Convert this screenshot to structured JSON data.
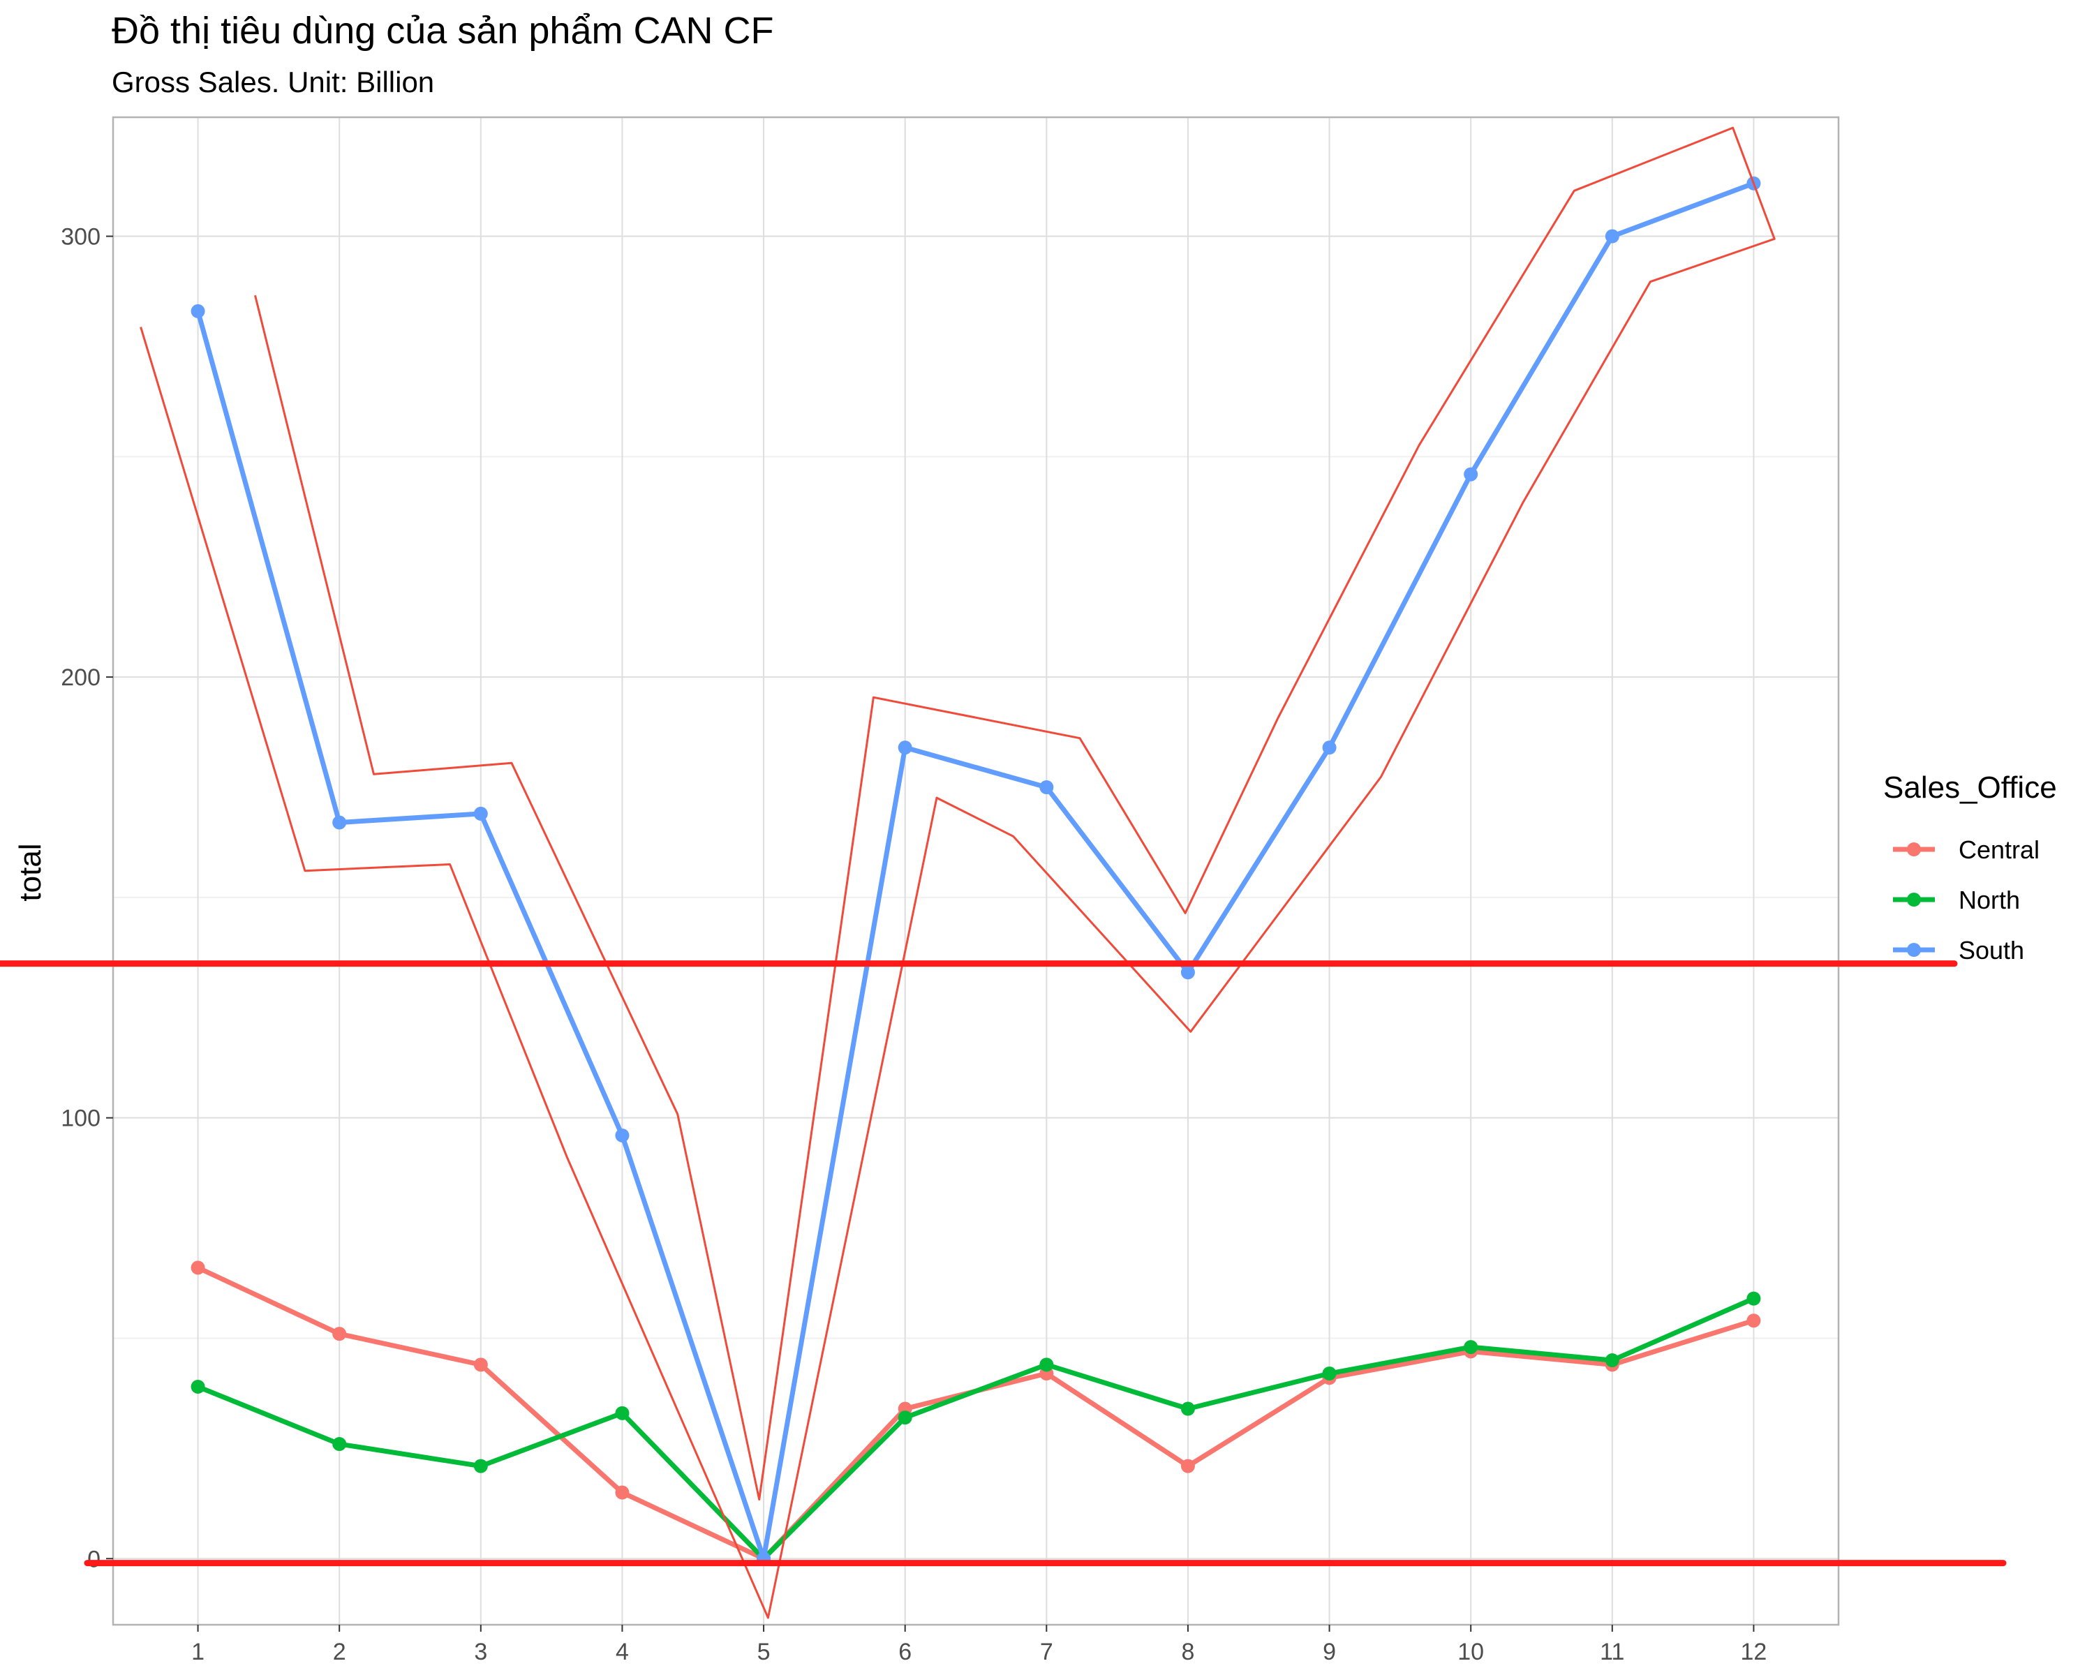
{
  "chart_data": {
    "type": "line",
    "title": "Đồ thị tiêu dùng của sản phẩm CAN CF",
    "subtitle": "Gross Sales. Unit: Billion",
    "xlabel": "",
    "ylabel": "total",
    "x": [
      1,
      2,
      3,
      4,
      5,
      6,
      7,
      8,
      9,
      10,
      11,
      12
    ],
    "xlim": [
      0.4,
      12.6
    ],
    "ylim": [
      -15,
      327
    ],
    "yticks": [
      0,
      100,
      200,
      300
    ],
    "grid": true,
    "legend": {
      "title": "Sales_Office",
      "placement": "right"
    },
    "series": [
      {
        "name": "Central",
        "color": "#F8766D",
        "values": [
          66,
          51,
          44,
          15,
          0,
          34,
          42,
          21,
          41,
          47,
          44,
          54
        ]
      },
      {
        "name": "North",
        "color": "#00BA38",
        "values": [
          39,
          26,
          21,
          33,
          0,
          32,
          44,
          34,
          42,
          48,
          45,
          59
        ]
      },
      {
        "name": "South",
        "color": "#619CFF",
        "values": [
          283,
          167,
          169,
          96,
          0,
          184,
          175,
          133,
          184,
          246,
          300,
          312
        ]
      }
    ],
    "annotations": {
      "hline_color": "#FF1A1A",
      "hlines": [
        135,
        -1
      ],
      "freehand_outline_color": "#F04A3A"
    }
  }
}
